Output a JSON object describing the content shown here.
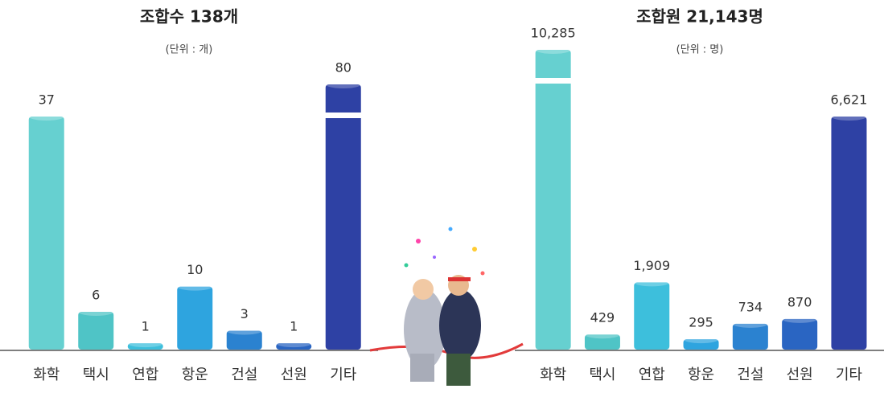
{
  "chart_data": [
    {
      "type": "bar",
      "title": "조합수 138개",
      "subtitle": "(단위 : 개)",
      "categories": [
        "화학",
        "택시",
        "연합",
        "항운",
        "건설",
        "선원",
        "기타"
      ],
      "values": [
        37,
        6,
        1,
        10,
        3,
        1,
        80
      ],
      "colors": [
        "#66d0d0",
        "#4fc4c6",
        "#3dbfdc",
        "#2ea4df",
        "#2b82d0",
        "#2a65c2",
        "#2e41a4"
      ]
    },
    {
      "type": "bar",
      "title": "조합원 21,143명",
      "subtitle": "(단위 : 명)",
      "categories": [
        "화학",
        "택시",
        "연합",
        "항운",
        "건설",
        "선원",
        "기타"
      ],
      "values": [
        10285,
        429,
        1909,
        295,
        734,
        870,
        6621
      ],
      "value_labels": [
        "10,285",
        "429",
        "1,909",
        "295",
        "734",
        "870",
        "6,621"
      ],
      "colors": [
        "#66d0d0",
        "#4fc4c6",
        "#3dbfdc",
        "#2ea4df",
        "#2b82d0",
        "#2a65c2",
        "#2e41a4"
      ]
    }
  ]
}
